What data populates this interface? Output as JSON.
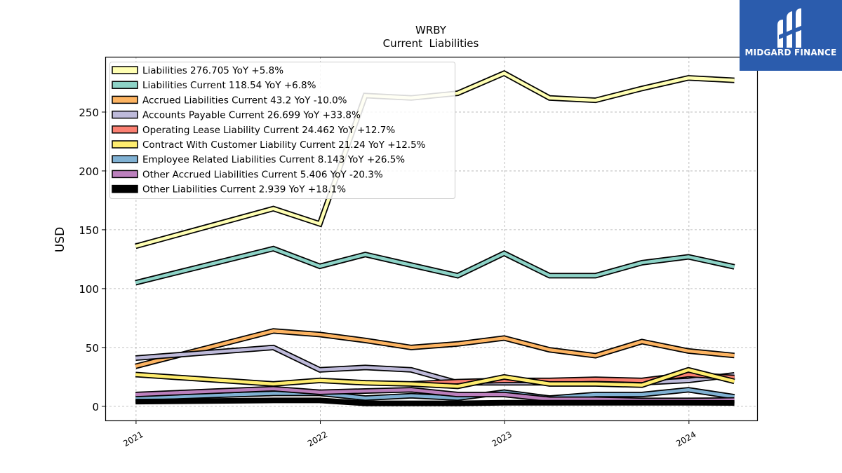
{
  "logo": {
    "text": "MIDGARD FINANCE",
    "icon": "midgard-logo-icon",
    "background": "#2b5cad"
  },
  "chart_data": {
    "type": "line",
    "title": "WRBY",
    "subtitle": "Current  Liabilities",
    "ylabel": "USD",
    "xlabel": "",
    "x_ticks": [
      "2021",
      "2022",
      "2023",
      "2024"
    ],
    "y_ticks": [
      "0",
      "50",
      "100",
      "150",
      "200",
      "250"
    ],
    "xlim": [
      "2020-11-01",
      "2024-05-15"
    ],
    "ylim": [
      -12,
      297
    ],
    "grid": true,
    "legend_position": "top-left",
    "x": [
      "2020-12-31",
      "2021-09-30",
      "2021-12-31",
      "2022-03-31",
      "2022-06-30",
      "2022-09-30",
      "2022-12-31",
      "2023-03-31",
      "2023-06-30",
      "2023-09-30",
      "2023-12-31",
      "2024-03-31"
    ],
    "series": [
      {
        "name": "Liabilities",
        "legend": "Liabilities  276.705 YoY +5.8%",
        "color": "#ffffb3",
        "values": [
          136,
          168,
          155,
          264,
          262,
          266,
          283,
          262,
          260,
          270,
          279,
          277
        ]
      },
      {
        "name": "Liabilities Current",
        "legend": "Liabilities Current  118.54 YoY +6.8%",
        "color": "#8dd3c7",
        "values": [
          105,
          134,
          119,
          129,
          120,
          111,
          130,
          111,
          111,
          122,
          127,
          118.5
        ]
      },
      {
        "name": "Accrued Liabilities Current",
        "legend": "Accrued Liabilities Current  43.2 YoY -10.0%",
        "color": "#fdb462",
        "values": [
          34,
          64,
          61,
          56,
          50,
          53,
          58,
          48,
          43,
          55,
          47,
          43.2
        ]
      },
      {
        "name": "Accounts Payable Current",
        "legend": "Accounts Payable Current  26.699 YoY +33.8%",
        "color": "#bebada",
        "values": [
          41,
          50,
          31,
          33,
          31,
          20,
          20,
          20,
          20,
          20,
          22,
          26.7
        ]
      },
      {
        "name": "Operating Lease Liability Current",
        "legend": "Operating Lease Liability Current  24.462 YoY +12.7%",
        "color": "#fb8072",
        "values": [
          null,
          null,
          null,
          null,
          19,
          21,
          22,
          22,
          23,
          22,
          27,
          24.5
        ]
      },
      {
        "name": "Contract With Customer Liability Current",
        "legend": "Contract With Customer Liability Current  21.24 YoY +12.5%",
        "color": "#ffed6f",
        "values": [
          27,
          19,
          22,
          20,
          19,
          17,
          25,
          19,
          19,
          18,
          31,
          21.2
        ]
      },
      {
        "name": "Employee Related Liabilities Current",
        "legend": "Employee Related Liabilities Current  8.143 YoY +26.5%",
        "color": "#80b1d3",
        "values": [
          7,
          11,
          11,
          7,
          9,
          7,
          12,
          7,
          10,
          10,
          14,
          8.1
        ]
      },
      {
        "name": "Other Accrued Liabilities Current",
        "legend": "Other Accrued Liabilities Current  5.406 YoY -20.3%",
        "color": "#bc80bd",
        "values": [
          10,
          15,
          12,
          13,
          14,
          10,
          10,
          6,
          6,
          5,
          5,
          5.4
        ]
      },
      {
        "name": "Other Liabilities Current",
        "legend": "Other Liabilities Current  2.939 YoY +18.1%",
        "color": "#000000",
        "values": [
          4,
          5,
          5,
          2.5,
          2.5,
          2.5,
          3,
          3,
          3,
          3,
          3,
          2.9
        ]
      }
    ]
  }
}
